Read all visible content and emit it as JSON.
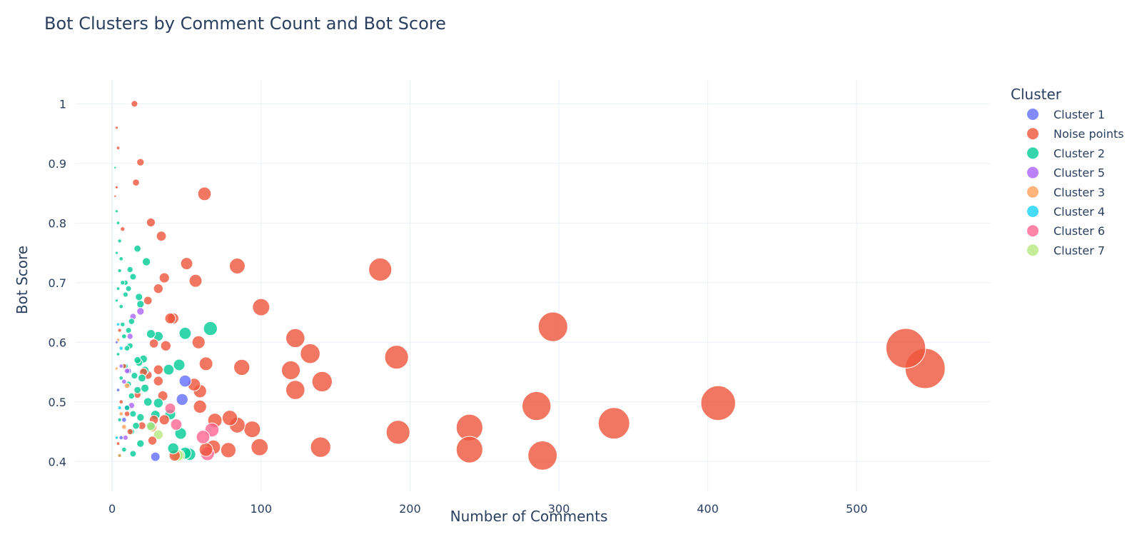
{
  "chart_data": {
    "type": "scatter",
    "title": "Bot Clusters by Comment Count and Bot Score",
    "xlabel": "Number of Comments",
    "ylabel": "Bot Score",
    "xlim": [
      -25,
      590
    ],
    "ylim": [
      0.35,
      1.04
    ],
    "xticks": [
      0,
      100,
      200,
      300,
      400,
      500
    ],
    "yticks": [
      0.4,
      0.5,
      0.6,
      0.7,
      0.8,
      0.9,
      1
    ],
    "grid": true,
    "legend_title": "Cluster",
    "legend_position": "top-right",
    "size_encoding": "marker area proportional to Number of Comments",
    "series": [
      {
        "name": "Cluster 1",
        "color": "#636efa",
        "points": [
          [
            49,
            0.535
          ],
          [
            47,
            0.504
          ],
          [
            29,
            0.408
          ],
          [
            11,
            0.552
          ],
          [
            6,
            0.44
          ],
          [
            8,
            0.47
          ],
          [
            4,
            0.52
          ],
          [
            10,
            0.49
          ],
          [
            3,
            0.6
          ]
        ]
      },
      {
        "name": "Noise points",
        "color": "#ef553b",
        "points": [
          [
            15,
            1.0
          ],
          [
            3,
            0.96
          ],
          [
            4,
            0.926
          ],
          [
            19,
            0.902
          ],
          [
            16,
            0.868
          ],
          [
            62,
            0.849
          ],
          [
            3,
            0.86
          ],
          [
            2,
            0.845
          ],
          [
            26,
            0.801
          ],
          [
            7,
            0.79
          ],
          [
            33,
            0.778
          ],
          [
            50,
            0.732
          ],
          [
            84,
            0.728
          ],
          [
            180,
            0.722
          ],
          [
            35,
            0.708
          ],
          [
            56,
            0.703
          ],
          [
            31,
            0.69
          ],
          [
            24,
            0.67
          ],
          [
            100,
            0.659
          ],
          [
            39,
            0.64
          ],
          [
            41,
            0.64
          ],
          [
            296,
            0.626
          ],
          [
            123,
            0.607
          ],
          [
            58,
            0.6
          ],
          [
            28,
            0.598
          ],
          [
            36,
            0.594
          ],
          [
            533,
            0.59
          ],
          [
            133,
            0.581
          ],
          [
            191,
            0.575
          ],
          [
            63,
            0.564
          ],
          [
            87,
            0.558
          ],
          [
            546,
            0.556
          ],
          [
            120,
            0.553
          ],
          [
            31,
            0.554
          ],
          [
            21,
            0.55
          ],
          [
            24,
            0.545
          ],
          [
            141,
            0.534
          ],
          [
            31,
            0.535
          ],
          [
            55,
            0.529
          ],
          [
            123,
            0.52
          ],
          [
            59,
            0.518
          ],
          [
            34,
            0.51
          ],
          [
            17,
            0.512
          ],
          [
            407,
            0.498
          ],
          [
            285,
            0.493
          ],
          [
            59,
            0.492
          ],
          [
            337,
            0.464
          ],
          [
            69,
            0.469
          ],
          [
            79,
            0.473
          ],
          [
            84,
            0.461
          ],
          [
            240,
            0.457
          ],
          [
            94,
            0.454
          ],
          [
            192,
            0.449
          ],
          [
            28,
            0.47
          ],
          [
            20,
            0.46
          ],
          [
            27,
            0.435
          ],
          [
            35,
            0.47
          ],
          [
            240,
            0.42
          ],
          [
            140,
            0.424
          ],
          [
            99,
            0.424
          ],
          [
            78,
            0.419
          ],
          [
            68,
            0.424
          ],
          [
            63,
            0.42
          ],
          [
            289,
            0.41
          ],
          [
            42,
            0.41
          ],
          [
            10,
            0.48
          ],
          [
            6,
            0.5
          ],
          [
            4,
            0.43
          ],
          [
            8,
            0.56
          ],
          [
            5,
            0.62
          ],
          [
            12,
            0.45
          ]
        ]
      },
      {
        "name": "Cluster 2",
        "color": "#00cc96",
        "points": [
          [
            2,
            0.893
          ],
          [
            3,
            0.82
          ],
          [
            4,
            0.8
          ],
          [
            5,
            0.77
          ],
          [
            3,
            0.75
          ],
          [
            5,
            0.72
          ],
          [
            4,
            0.69
          ],
          [
            6,
            0.74
          ],
          [
            7,
            0.7
          ],
          [
            9,
            0.7
          ],
          [
            12,
            0.722
          ],
          [
            17,
            0.757
          ],
          [
            23,
            0.735
          ],
          [
            14,
            0.71
          ],
          [
            11,
            0.69
          ],
          [
            19,
            0.664
          ],
          [
            18,
            0.676
          ],
          [
            9,
            0.68
          ],
          [
            11,
            0.62
          ],
          [
            6,
            0.66
          ],
          [
            8,
            0.61
          ],
          [
            13,
            0.635
          ],
          [
            66,
            0.623
          ],
          [
            26,
            0.614
          ],
          [
            31,
            0.61
          ],
          [
            49,
            0.615
          ],
          [
            10,
            0.59
          ],
          [
            12,
            0.594
          ],
          [
            17,
            0.57
          ],
          [
            18,
            0.566
          ],
          [
            21,
            0.572
          ],
          [
            9,
            0.56
          ],
          [
            45,
            0.562
          ],
          [
            38,
            0.554
          ],
          [
            15,
            0.544
          ],
          [
            22,
            0.553
          ],
          [
            20,
            0.54
          ],
          [
            11,
            0.53
          ],
          [
            17,
            0.52
          ],
          [
            22,
            0.523
          ],
          [
            13,
            0.51
          ],
          [
            31,
            0.498
          ],
          [
            24,
            0.5
          ],
          [
            10,
            0.49
          ],
          [
            14,
            0.48
          ],
          [
            19,
            0.474
          ],
          [
            29,
            0.478
          ],
          [
            39,
            0.479
          ],
          [
            16,
            0.46
          ],
          [
            26,
            0.46
          ],
          [
            46,
            0.447
          ],
          [
            13,
            0.45
          ],
          [
            19,
            0.43
          ],
          [
            41,
            0.422
          ],
          [
            52,
            0.412
          ],
          [
            49,
            0.414
          ],
          [
            14,
            0.413
          ],
          [
            5,
            0.41
          ],
          [
            8,
            0.42
          ],
          [
            3,
            0.44
          ],
          [
            6,
            0.54
          ],
          [
            4,
            0.58
          ],
          [
            7,
            0.63
          ],
          [
            3,
            0.67
          ],
          [
            5,
            0.47
          ]
        ]
      },
      {
        "name": "Cluster 5",
        "color": "#ab63fa",
        "points": [
          [
            19,
            0.652
          ],
          [
            14,
            0.643
          ],
          [
            12,
            0.61
          ],
          [
            10,
            0.552
          ],
          [
            8,
            0.534
          ],
          [
            13,
            0.494
          ],
          [
            9,
            0.44
          ],
          [
            6,
            0.56
          ]
        ]
      },
      {
        "name": "Cluster 3",
        "color": "#ffa15a",
        "points": [
          [
            10,
            0.527
          ],
          [
            8,
            0.458
          ],
          [
            27,
            0.457
          ],
          [
            4,
            0.604
          ],
          [
            3,
            0.556
          ],
          [
            5,
            0.41
          ],
          [
            6,
            0.48
          ]
        ]
      },
      {
        "name": "Cluster 4",
        "color": "#19d3f3",
        "points": [
          [
            4,
            0.63
          ],
          [
            5,
            0.49
          ],
          [
            3,
            0.44
          ],
          [
            6,
            0.59
          ]
        ]
      },
      {
        "name": "Cluster 6",
        "color": "#ff6692",
        "points": [
          [
            39,
            0.489
          ],
          [
            43,
            0.462
          ],
          [
            67,
            0.453
          ],
          [
            61,
            0.441
          ],
          [
            64,
            0.413
          ]
        ]
      },
      {
        "name": "Cluster 7",
        "color": "#b6e880",
        "points": [
          [
            31,
            0.445
          ],
          [
            26,
            0.459
          ],
          [
            45,
            0.41
          ],
          [
            44,
            0.41
          ]
        ]
      }
    ]
  }
}
